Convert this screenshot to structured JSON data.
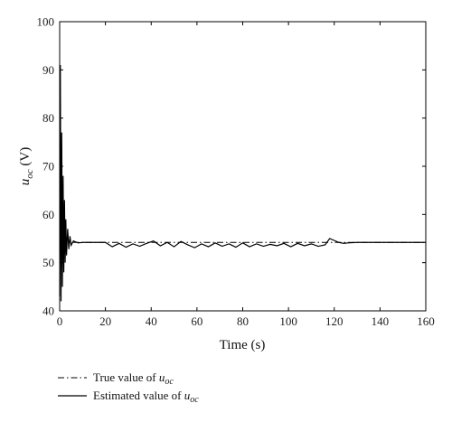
{
  "chart_data": {
    "type": "line",
    "xlabel": "Time (s)",
    "ylabel_symbol": "u",
    "ylabel_sub": "oc",
    "ylabel_unit": " (V)",
    "xlim": [
      0,
      160
    ],
    "ylim": [
      40,
      100
    ],
    "xticks": [
      "0",
      "20",
      "40",
      "60",
      "80",
      "100",
      "120",
      "140",
      "160"
    ],
    "yticks": [
      "40",
      "50",
      "60",
      "70",
      "80",
      "90",
      "100"
    ],
    "grid": false,
    "legend_position": "bottom-left, outside",
    "series": [
      {
        "name_prefix": "True value of ",
        "name_symbol": "u",
        "name_sub": "oc",
        "style": "dash-dot",
        "color": "#000000",
        "x": [
          0,
          160
        ],
        "y": [
          54.2,
          54.2
        ]
      },
      {
        "name_prefix": "Estimated value of ",
        "name_symbol": "u",
        "name_sub": "oc",
        "style": "solid",
        "color": "#000000",
        "x": [
          0,
          0.3,
          0.6,
          0.9,
          1.2,
          1.5,
          1.8,
          2.1,
          2.4,
          2.7,
          3.0,
          3.5,
          4.0,
          4.5,
          5.0,
          6,
          8,
          10,
          15,
          20,
          23,
          26,
          29,
          32,
          35,
          38,
          41,
          44,
          47,
          50,
          53,
          56,
          59,
          62,
          65,
          68,
          71,
          74,
          77,
          80,
          83,
          86,
          89,
          92,
          95,
          98,
          101,
          104,
          107,
          110,
          113,
          116,
          118,
          120,
          122,
          124,
          126,
          130,
          140,
          150,
          160
        ],
        "y": [
          43,
          91,
          42,
          77,
          45,
          68,
          48,
          63,
          50,
          59,
          51.5,
          57,
          52.8,
          55.5,
          53.6,
          54.5,
          54.1,
          54.2,
          54.2,
          54.2,
          53.3,
          54.0,
          53.2,
          53.9,
          53.4,
          54.0,
          54.5,
          53.5,
          54.2,
          53.3,
          54.4,
          53.7,
          53.1,
          53.9,
          53.3,
          54.1,
          53.4,
          53.9,
          53.2,
          54.1,
          53.3,
          53.9,
          53.4,
          53.8,
          53.5,
          54.0,
          53.3,
          54.0,
          53.5,
          53.9,
          53.4,
          53.7,
          55.0,
          54.6,
          54.2,
          54.0,
          54.1,
          54.2,
          54.2,
          54.2,
          54.2
        ]
      }
    ]
  }
}
